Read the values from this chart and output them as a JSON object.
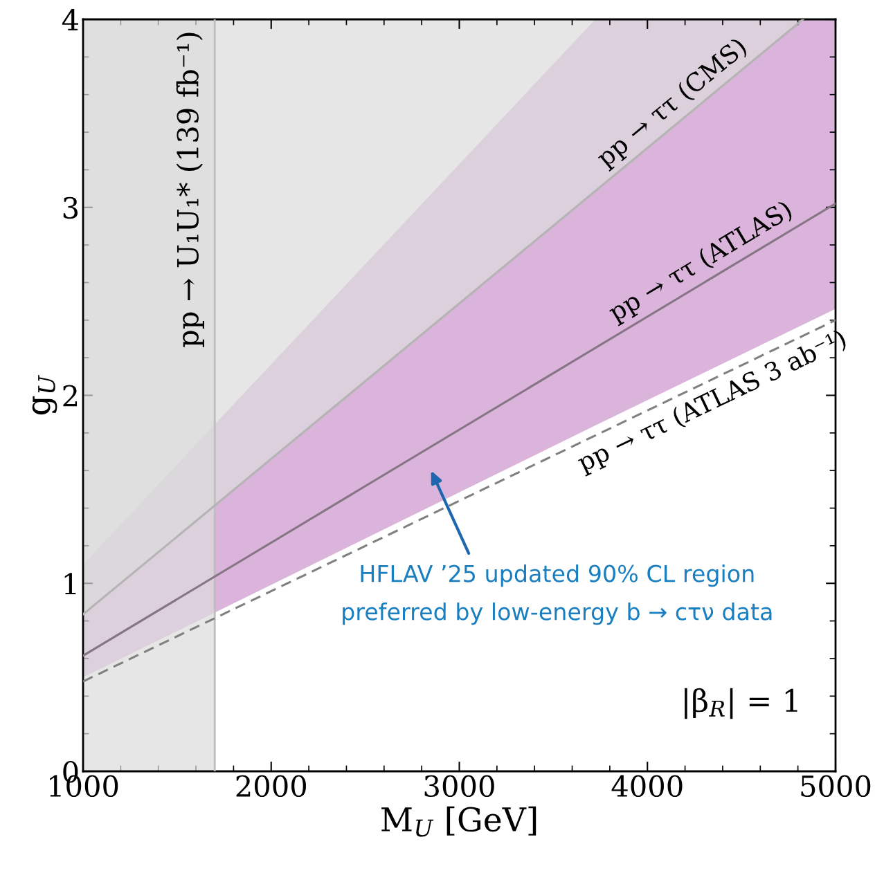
{
  "chart_data": {
    "type": "line",
    "xlabel": "M$_{U}$ [GeV]",
    "ylabel": "g$_{U}$",
    "xlim": [
      1000,
      5000
    ],
    "ylim": [
      0,
      4
    ],
    "xticks": [
      1000,
      2000,
      3000,
      4000,
      5000
    ],
    "yticks": [
      0,
      1,
      2,
      3,
      4
    ],
    "grid": false,
    "marker": "none",
    "series": [
      {
        "type": "area",
        "color": "#dab4da",
        "x": [
          1000,
          3723,
          5000
        ],
        "values": [
          null,
          null,
          null
        ],
        "lower": [
          0.5,
          1.84,
          2.46
        ],
        "upper": [
          1.1,
          4.0,
          4.0
        ]
      },
      {
        "type": "area",
        "color": "#e6e6e6",
        "x": [
          1000,
          4827,
          5000
        ],
        "values": [
          null,
          null,
          null
        ],
        "lower": [
          0.835,
          4.0,
          4.0
        ],
        "upper": [
          4.0,
          4.0,
          4.0
        ]
      },
      {
        "name": "pp → ττ (CMS)",
        "color": "#b4b4b4",
        "x": [
          1000,
          4827
        ],
        "values": [
          0.835,
          4.0
        ],
        "line_style": "solid"
      },
      {
        "name": "pp → ττ (ATLAS)",
        "color": "#857585",
        "x": [
          1000,
          5000
        ],
        "values": [
          0.615,
          3.02
        ],
        "line_style": "solid"
      },
      {
        "name": "pp → ττ (ATLAS 3 ab⁻¹)",
        "color": "#808080",
        "x": [
          1000,
          5000
        ],
        "values": [
          0.478,
          2.4
        ],
        "line_style": "dashed"
      }
    ],
    "bands": [
      {
        "axis": "x",
        "from": 1000,
        "to": 1700,
        "label": "pp → U₁U₁* (139 fb⁻¹)",
        "color": "#e6e6e6"
      }
    ],
    "ref_lines": [
      {
        "axis": "x",
        "value": 1700,
        "color": "#bdbdbd"
      }
    ],
    "annotations": [
      "HFLAV ’25 updated 90% CL region\npreferred by low-energy b → cτν data",
      "|β$_{R}$| = 1"
    ]
  }
}
